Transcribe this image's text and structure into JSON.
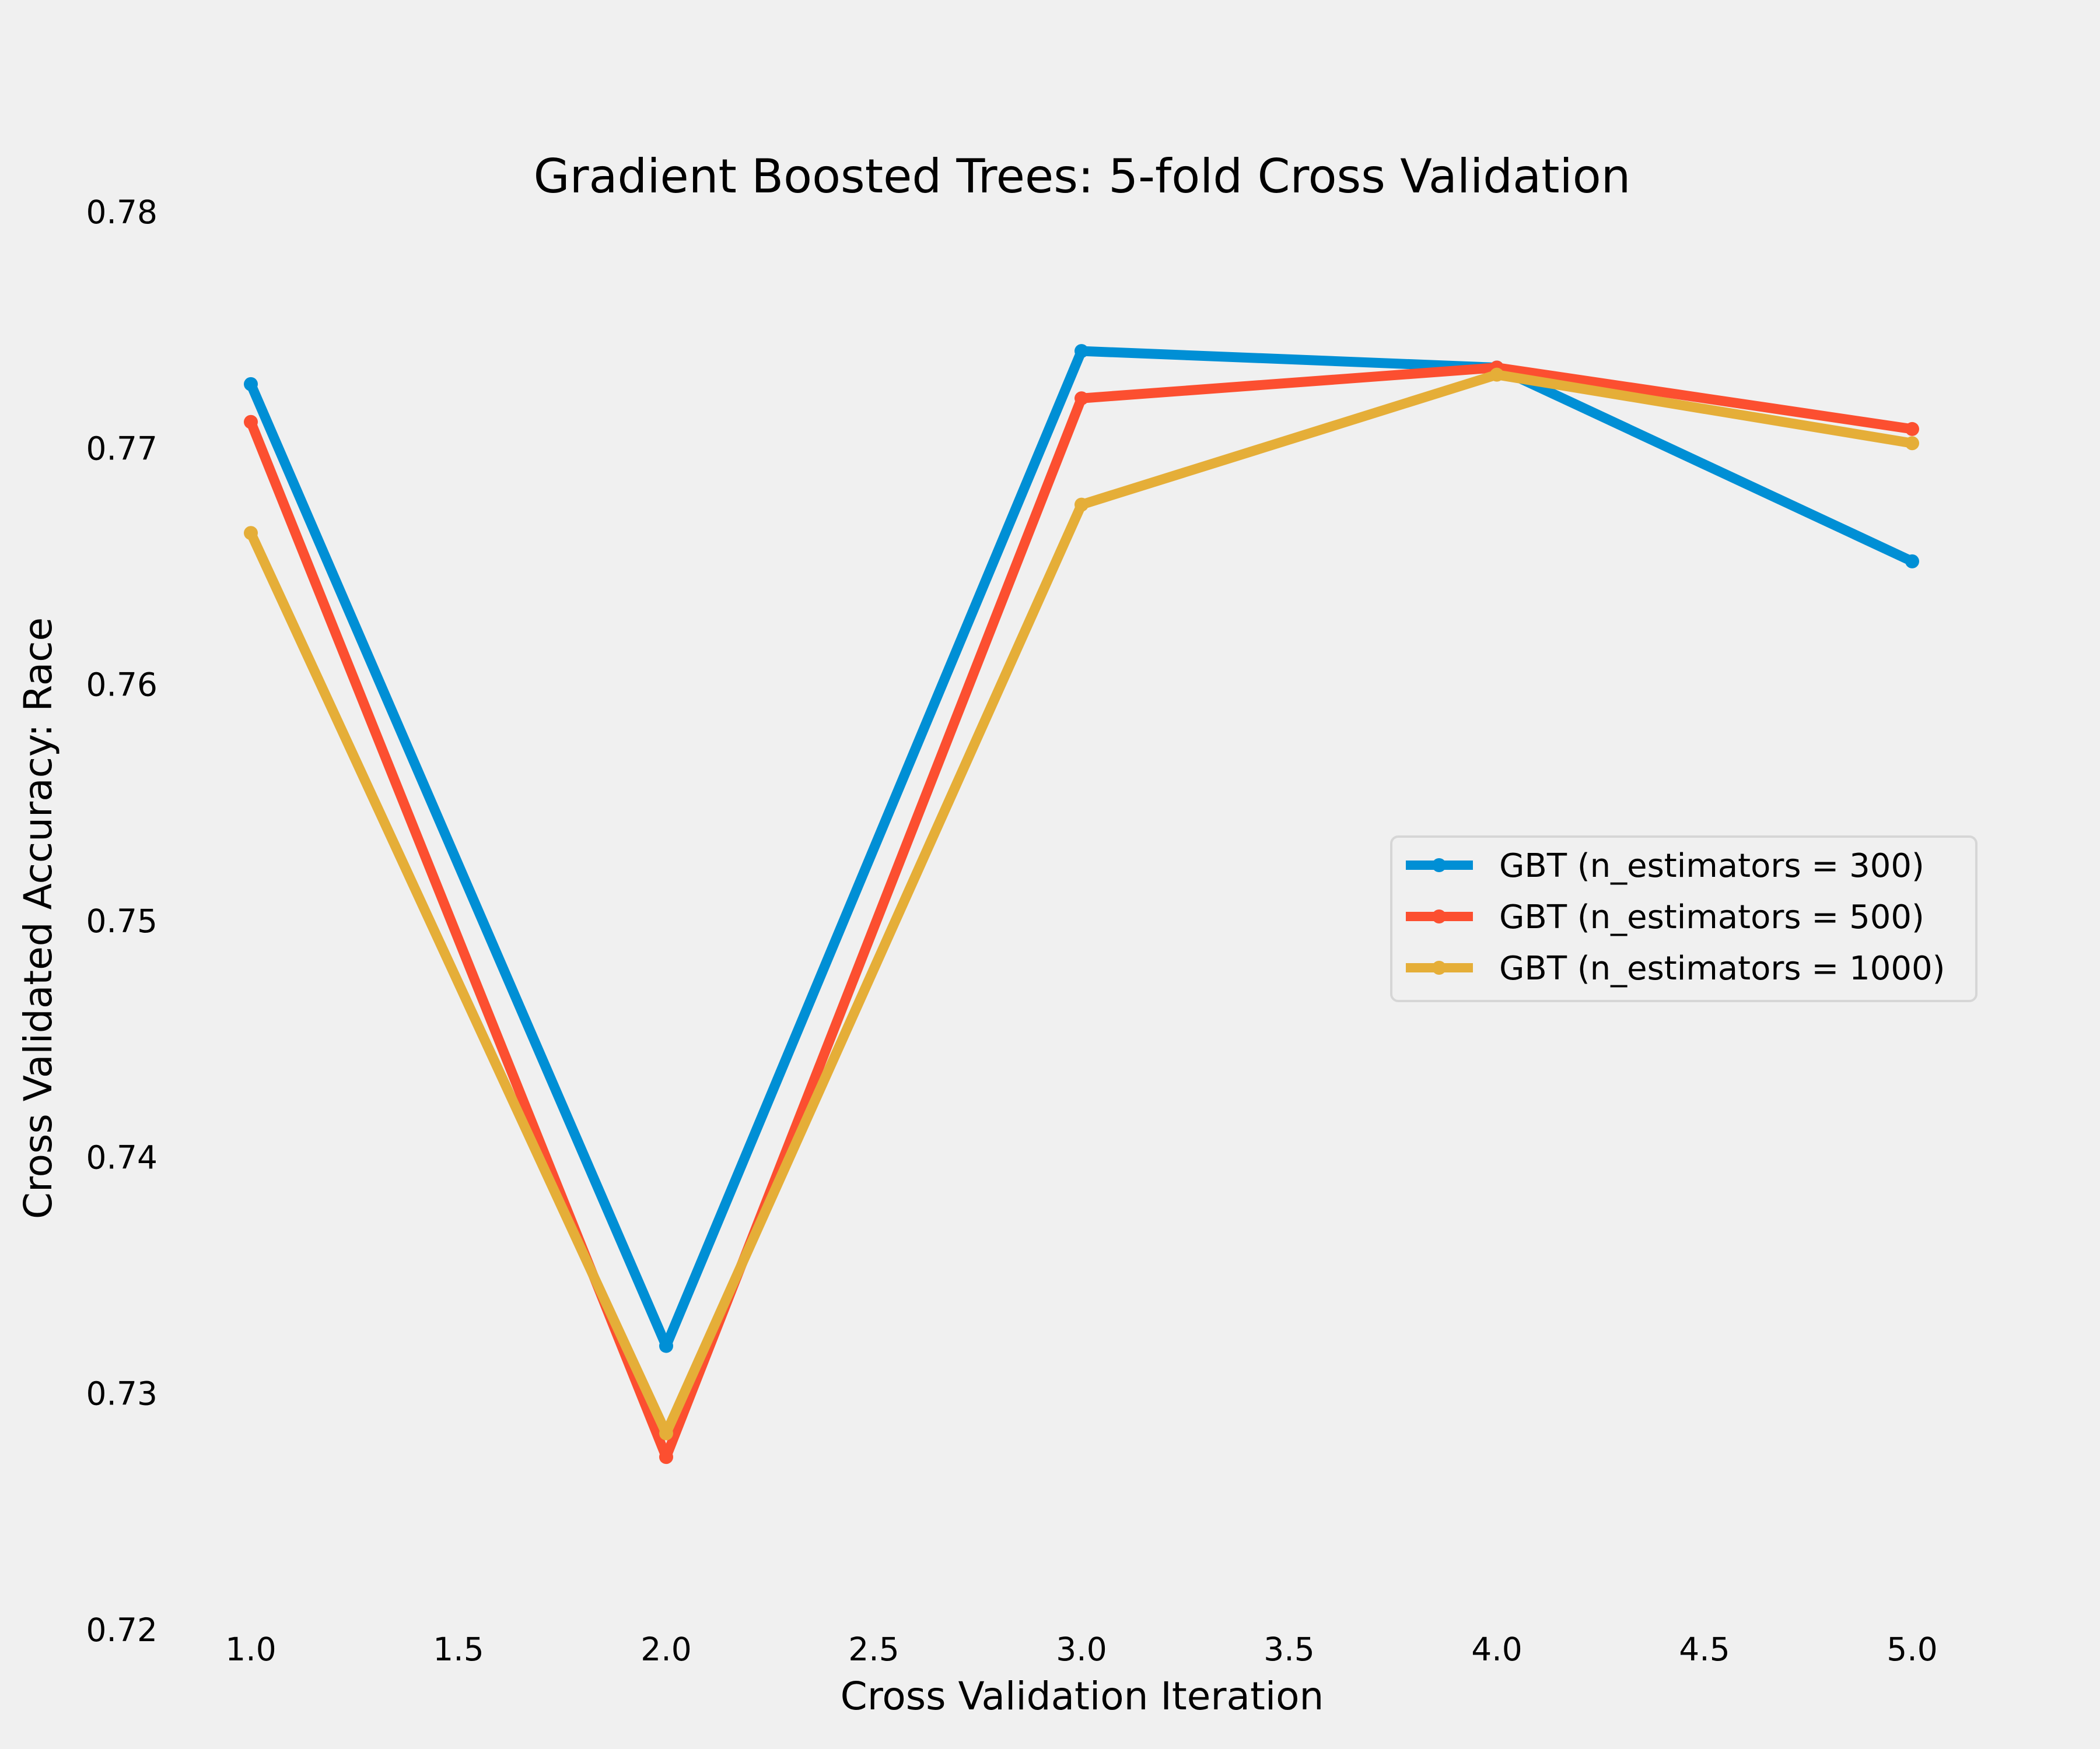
{
  "chart_data": {
    "type": "line",
    "title": "Gradient Boosted Trees: 5-fold Cross Validation",
    "xlabel": "Cross Validation Iteration",
    "ylabel": "Cross Validated Accuracy: Race",
    "x": [
      1,
      2,
      3,
      4,
      5
    ],
    "xlim": [
      1.0,
      5.0
    ],
    "ylim": [
      0.72,
      0.78
    ],
    "x_ticks": [
      "1.0",
      "1.5",
      "2.0",
      "2.5",
      "3.0",
      "3.5",
      "4.0",
      "4.5",
      "5.0"
    ],
    "y_ticks": [
      "0.72",
      "0.73",
      "0.74",
      "0.75",
      "0.76",
      "0.77",
      "0.78"
    ],
    "grid": false,
    "legend_position": "center-right",
    "series": [
      {
        "name": "GBT (n_estimators = 300)",
        "color": "#008fd5",
        "values": [
          0.7727,
          0.732,
          0.7741,
          0.7734,
          0.7652
        ]
      },
      {
        "name": "GBT (n_estimators = 500)",
        "color": "#fc4f30",
        "values": [
          0.7711,
          0.7273,
          0.7721,
          0.7734,
          0.7708
        ]
      },
      {
        "name": "GBT (n_estimators = 1000)",
        "color": "#e5ae38",
        "values": [
          0.7664,
          0.7283,
          0.7676,
          0.7731,
          0.7702
        ]
      }
    ]
  }
}
